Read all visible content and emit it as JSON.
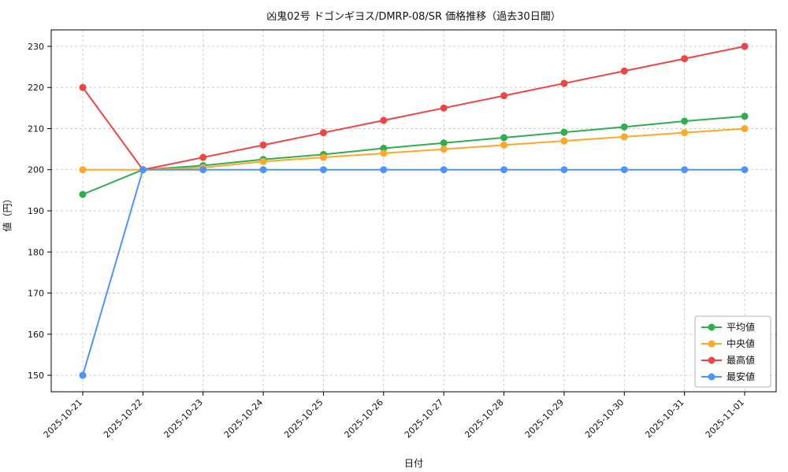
{
  "chart_data": {
    "type": "line",
    "title": "凶鬼02号 ドゴンギヨス/DMRP-08/SR 価格推移（過去30日間）",
    "xlabel": "日付",
    "ylabel": "値（円）",
    "categories": [
      "2025-10-21",
      "2025-10-22",
      "2025-10-23",
      "2025-10-24",
      "2025-10-25",
      "2025-10-26",
      "2025-10-27",
      "2025-10-28",
      "2025-10-29",
      "2025-10-30",
      "2025-10-31",
      "2025-11-01"
    ],
    "y_ticks": [
      150,
      160,
      170,
      180,
      190,
      200,
      210,
      220,
      230
    ],
    "ylim": [
      146,
      234
    ],
    "grid": true,
    "grid_color": "#cccccc",
    "legend_position": "lower right",
    "series": [
      {
        "name": "平均値",
        "color": "#2eae50",
        "values": [
          194,
          200,
          201,
          202.5,
          203.7,
          205.2,
          206.5,
          207.8,
          209.1,
          210.4,
          211.8,
          213
        ]
      },
      {
        "name": "中央値",
        "color": "#ffa726",
        "values": [
          200,
          200,
          200.5,
          202,
          203,
          204,
          205,
          206,
          207,
          208,
          209,
          210
        ]
      },
      {
        "name": "最高値",
        "color": "#ef4444",
        "values": [
          220,
          200,
          203,
          206,
          209,
          212,
          215,
          218,
          221,
          224,
          227,
          230
        ]
      },
      {
        "name": "最安値",
        "color": "#4d94ff",
        "values": [
          150,
          200,
          200,
          200,
          200,
          200,
          200,
          200,
          200,
          200,
          200,
          200
        ]
      }
    ]
  }
}
